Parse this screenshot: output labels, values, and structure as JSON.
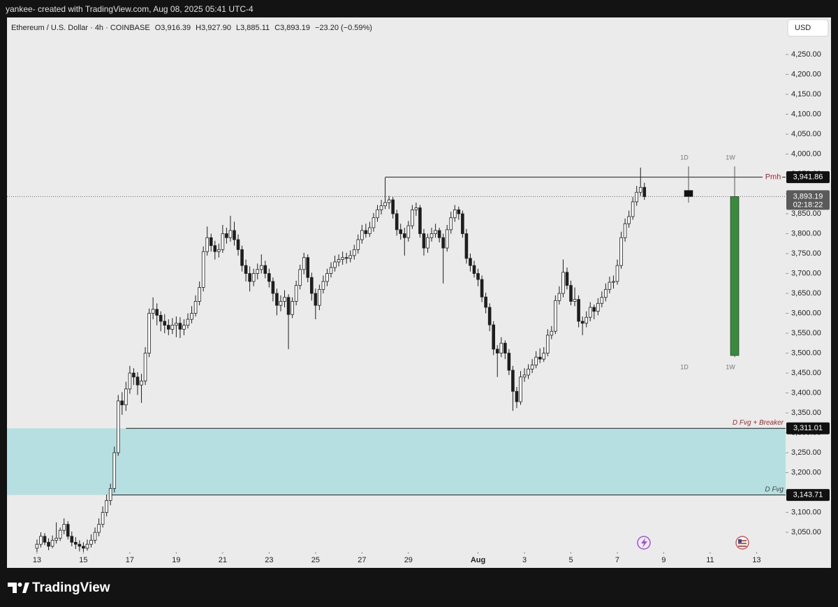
{
  "header": {
    "attribution": "yankee- created with TradingView.com, Aug 08, 2025 05:41 UTC-4",
    "symbol": "Ethereum / U.S. Dollar · 4h · COINBASE",
    "quote": [
      "O3,916.39",
      "H3,927.90",
      "L3,885.11",
      "C3,893.19",
      "−23.20 (−0.59%)"
    ],
    "currency": "USD",
    "brand": "TradingView"
  },
  "chart_data": {
    "type": "candlestick",
    "x": [
      0,
      4,
      8,
      12,
      16,
      20,
      24,
      28,
      32,
      36,
      40,
      44,
      48,
      52,
      56,
      60,
      64,
      68,
      72,
      76,
      80,
      84,
      88,
      92,
      96,
      100,
      104,
      108,
      112,
      116,
      120,
      124,
      128,
      132,
      136,
      140,
      144,
      148,
      152,
      156,
      160,
      164,
      168,
      172,
      176,
      180,
      184,
      188,
      192,
      196,
      200,
      204,
      208,
      212,
      216,
      220,
      224,
      228,
      232,
      236,
      240,
      244,
      248,
      252,
      256,
      260,
      264,
      268,
      272,
      276,
      280,
      284,
      288,
      292,
      296,
      300,
      304,
      308,
      312,
      316,
      320,
      324,
      328,
      332,
      336,
      340,
      344,
      348,
      352,
      356,
      360,
      364,
      368,
      372,
      376,
      380,
      384,
      388,
      392,
      396,
      400,
      404,
      408,
      412,
      416,
      420,
      424,
      428,
      432,
      436,
      440,
      444,
      448,
      452,
      456,
      460,
      464,
      468,
      472,
      476,
      480,
      484,
      488,
      492,
      496,
      500,
      504,
      508,
      512,
      516,
      520,
      524,
      528,
      532,
      536,
      540,
      544,
      548,
      552,
      556,
      560,
      564,
      568,
      572,
      576,
      580,
      584,
      588,
      592,
      596,
      600,
      604,
      608,
      612,
      616,
      620,
      624,
      628
    ],
    "ohlc": [
      [
        3010,
        3032,
        3000,
        3020
      ],
      [
        3020,
        3050,
        3012,
        3040
      ],
      [
        3040,
        3048,
        3018,
        3025
      ],
      [
        3025,
        3035,
        3005,
        3015
      ],
      [
        3015,
        3042,
        3010,
        3030
      ],
      [
        3030,
        3075,
        3022,
        3035
      ],
      [
        3035,
        3062,
        3028,
        3055
      ],
      [
        3055,
        3085,
        3045,
        3070
      ],
      [
        3070,
        3078,
        3032,
        3040
      ],
      [
        3040,
        3052,
        3015,
        3025
      ],
      [
        3025,
        3038,
        3008,
        3020
      ],
      [
        3020,
        3030,
        3002,
        3015
      ],
      [
        3015,
        3025,
        2995,
        3010
      ],
      [
        3010,
        3032,
        3004,
        3020
      ],
      [
        3020,
        3045,
        3012,
        3030
      ],
      [
        3030,
        3062,
        3022,
        3050
      ],
      [
        3050,
        3085,
        3040,
        3070
      ],
      [
        3070,
        3115,
        3062,
        3100
      ],
      [
        3100,
        3145,
        3090,
        3130
      ],
      [
        3130,
        3172,
        3118,
        3160
      ],
      [
        3160,
        3265,
        3150,
        3250
      ],
      [
        3250,
        3395,
        3242,
        3380
      ],
      [
        3380,
        3402,
        3345,
        3370
      ],
      [
        3370,
        3428,
        3355,
        3410
      ],
      [
        3410,
        3468,
        3398,
        3450
      ],
      [
        3450,
        3462,
        3420,
        3440
      ],
      [
        3440,
        3452,
        3395,
        3420
      ],
      [
        3420,
        3448,
        3375,
        3430
      ],
      [
        3430,
        3515,
        3420,
        3500
      ],
      [
        3500,
        3612,
        3490,
        3600
      ],
      [
        3600,
        3640,
        3585,
        3610
      ],
      [
        3610,
        3625,
        3570,
        3595
      ],
      [
        3595,
        3605,
        3555,
        3580
      ],
      [
        3580,
        3598,
        3550,
        3570
      ],
      [
        3570,
        3585,
        3545,
        3560
      ],
      [
        3560,
        3588,
        3548,
        3570
      ],
      [
        3570,
        3592,
        3540,
        3575
      ],
      [
        3575,
        3590,
        3538,
        3560
      ],
      [
        3560,
        3585,
        3545,
        3570
      ],
      [
        3570,
        3600,
        3562,
        3585
      ],
      [
        3585,
        3618,
        3575,
        3600
      ],
      [
        3600,
        3645,
        3592,
        3630
      ],
      [
        3630,
        3680,
        3620,
        3665
      ],
      [
        3665,
        3768,
        3655,
        3755
      ],
      [
        3755,
        3818,
        3745,
        3790
      ],
      [
        3790,
        3800,
        3755,
        3770
      ],
      [
        3770,
        3782,
        3735,
        3755
      ],
      [
        3755,
        3775,
        3740,
        3760
      ],
      [
        3760,
        3822,
        3752,
        3800
      ],
      [
        3800,
        3815,
        3775,
        3790
      ],
      [
        3790,
        3845,
        3780,
        3808
      ],
      [
        3808,
        3830,
        3770,
        3785
      ],
      [
        3785,
        3798,
        3745,
        3760
      ],
      [
        3760,
        3770,
        3705,
        3720
      ],
      [
        3720,
        3735,
        3680,
        3700
      ],
      [
        3700,
        3718,
        3655,
        3680
      ],
      [
        3680,
        3712,
        3668,
        3700
      ],
      [
        3700,
        3725,
        3685,
        3710
      ],
      [
        3710,
        3748,
        3700,
        3720
      ],
      [
        3720,
        3732,
        3688,
        3700
      ],
      [
        3700,
        3712,
        3665,
        3680
      ],
      [
        3680,
        3690,
        3630,
        3650
      ],
      [
        3650,
        3662,
        3595,
        3620
      ],
      [
        3620,
        3645,
        3605,
        3630
      ],
      [
        3630,
        3658,
        3615,
        3640
      ],
      [
        3640,
        3648,
        3510,
        3597
      ],
      [
        3597,
        3640,
        3588,
        3630
      ],
      [
        3630,
        3682,
        3620,
        3670
      ],
      [
        3670,
        3722,
        3660,
        3710
      ],
      [
        3710,
        3752,
        3698,
        3740
      ],
      [
        3740,
        3748,
        3678,
        3690
      ],
      [
        3690,
        3702,
        3632,
        3650
      ],
      [
        3650,
        3662,
        3585,
        3620
      ],
      [
        3620,
        3672,
        3608,
        3660
      ],
      [
        3660,
        3695,
        3650,
        3680
      ],
      [
        3680,
        3712,
        3668,
        3700
      ],
      [
        3700,
        3728,
        3690,
        3715
      ],
      [
        3715,
        3745,
        3705,
        3729
      ],
      [
        3729,
        3748,
        3718,
        3735
      ],
      [
        3735,
        3755,
        3722,
        3740
      ],
      [
        3740,
        3752,
        3725,
        3738
      ],
      [
        3738,
        3758,
        3728,
        3745
      ],
      [
        3745,
        3772,
        3735,
        3760
      ],
      [
        3760,
        3798,
        3750,
        3785
      ],
      [
        3785,
        3822,
        3775,
        3808
      ],
      [
        3808,
        3825,
        3790,
        3800
      ],
      [
        3800,
        3830,
        3792,
        3815
      ],
      [
        3815,
        3852,
        3805,
        3840
      ],
      [
        3840,
        3872,
        3830,
        3860
      ],
      [
        3860,
        3885,
        3848,
        3870
      ],
      [
        3870,
        3941,
        3862,
        3878
      ],
      [
        3878,
        3895,
        3862,
        3885
      ],
      [
        3885,
        3892,
        3838,
        3850
      ],
      [
        3850,
        3860,
        3795,
        3810
      ],
      [
        3810,
        3825,
        3785,
        3800
      ],
      [
        3800,
        3815,
        3745,
        3790
      ],
      [
        3790,
        3832,
        3780,
        3820
      ],
      [
        3820,
        3872,
        3812,
        3860
      ],
      [
        3860,
        3878,
        3845,
        3865
      ],
      [
        3865,
        3872,
        3790,
        3800
      ],
      [
        3800,
        3812,
        3745,
        3764
      ],
      [
        3764,
        3800,
        3752,
        3790
      ],
      [
        3790,
        3815,
        3780,
        3800
      ],
      [
        3800,
        3825,
        3790,
        3808
      ],
      [
        3808,
        3815,
        3778,
        3790
      ],
      [
        3790,
        3800,
        3675,
        3764
      ],
      [
        3764,
        3822,
        3755,
        3810
      ],
      [
        3810,
        3855,
        3800,
        3840
      ],
      [
        3840,
        3872,
        3830,
        3860
      ],
      [
        3860,
        3868,
        3835,
        3850
      ],
      [
        3850,
        3858,
        3790,
        3800
      ],
      [
        3800,
        3812,
        3725,
        3738
      ],
      [
        3738,
        3750,
        3705,
        3720
      ],
      [
        3720,
        3732,
        3690,
        3700
      ],
      [
        3700,
        3712,
        3668,
        3685
      ],
      [
        3685,
        3695,
        3628,
        3641
      ],
      [
        3641,
        3652,
        3600,
        3615
      ],
      [
        3615,
        3625,
        3555,
        3571
      ],
      [
        3571,
        3580,
        3495,
        3510
      ],
      [
        3510,
        3520,
        3440,
        3500
      ],
      [
        3500,
        3540,
        3490,
        3525
      ],
      [
        3525,
        3532,
        3485,
        3500
      ],
      [
        3500,
        3510,
        3445,
        3457
      ],
      [
        3457,
        3468,
        3355,
        3404
      ],
      [
        3404,
        3415,
        3362,
        3378
      ],
      [
        3378,
        3455,
        3370,
        3440
      ],
      [
        3440,
        3462,
        3428,
        3445
      ],
      [
        3445,
        3472,
        3435,
        3460
      ],
      [
        3460,
        3485,
        3450,
        3470
      ],
      [
        3470,
        3505,
        3462,
        3490
      ],
      [
        3490,
        3512,
        3475,
        3485
      ],
      [
        3485,
        3515,
        3478,
        3500
      ],
      [
        3500,
        3560,
        3492,
        3545
      ],
      [
        3545,
        3568,
        3535,
        3555
      ],
      [
        3555,
        3645,
        3548,
        3632
      ],
      [
        3632,
        3668,
        3622,
        3650
      ],
      [
        3650,
        3735,
        3640,
        3703
      ],
      [
        3703,
        3715,
        3660,
        3670
      ],
      [
        3670,
        3682,
        3620,
        3630
      ],
      [
        3630,
        3665,
        3618,
        3635
      ],
      [
        3635,
        3645,
        3565,
        3580
      ],
      [
        3580,
        3592,
        3545,
        3575
      ],
      [
        3575,
        3605,
        3565,
        3590
      ],
      [
        3590,
        3628,
        3580,
        3615
      ],
      [
        3615,
        3622,
        3585,
        3605
      ],
      [
        3605,
        3638,
        3595,
        3625
      ],
      [
        3625,
        3655,
        3615,
        3640
      ],
      [
        3640,
        3675,
        3630,
        3660
      ],
      [
        3660,
        3692,
        3650,
        3678
      ],
      [
        3678,
        3695,
        3662,
        3680
      ],
      [
        3680,
        3735,
        3672,
        3720
      ],
      [
        3720,
        3805,
        3712,
        3790
      ],
      [
        3790,
        3838,
        3780,
        3825
      ],
      [
        3825,
        3858,
        3815,
        3843
      ],
      [
        3843,
        3892,
        3835,
        3880
      ],
      [
        3880,
        3920,
        3870,
        3904
      ],
      [
        3904,
        3966,
        3895,
        3916.39
      ],
      [
        3916.39,
        3927.9,
        3885.11,
        3893.19
      ]
    ],
    "up_color": "#ffffff",
    "down_color": "#1e1e1e",
    "wick_color": "#1e1e1e",
    "xlim": [
      -31,
      774
    ],
    "xticks": [
      {
        "value": 0,
        "label": "13"
      },
      {
        "value": 48,
        "label": "15"
      },
      {
        "value": 96,
        "label": "17"
      },
      {
        "value": 144,
        "label": "19"
      },
      {
        "value": 192,
        "label": "21"
      },
      {
        "value": 240,
        "label": "23"
      },
      {
        "value": 288,
        "label": "25"
      },
      {
        "value": 336,
        "label": "27"
      },
      {
        "value": 384,
        "label": "29"
      },
      {
        "value": 456,
        "label": "Aug"
      },
      {
        "value": 504,
        "label": "3"
      },
      {
        "value": 552,
        "label": "5"
      },
      {
        "value": 600,
        "label": "7"
      },
      {
        "value": 648,
        "label": "9"
      },
      {
        "value": 696,
        "label": "11"
      },
      {
        "value": 744,
        "label": "13"
      }
    ],
    "ylim": [
      3001,
      4343
    ],
    "yticks": [
      {
        "value": 3050,
        "label": "3,050.00"
      },
      {
        "value": 3100,
        "label": "3,100.00"
      },
      {
        "value": 3150,
        "label": "3,150.00"
      },
      {
        "value": 3200,
        "label": "3,200.00"
      },
      {
        "value": 3250,
        "label": "3,250.00"
      },
      {
        "value": 3300,
        "label": "3,300.00"
      },
      {
        "value": 3350,
        "label": "3,350.00"
      },
      {
        "value": 3400,
        "label": "3,400.00"
      },
      {
        "value": 3450,
        "label": "3,450.00"
      },
      {
        "value": 3500,
        "label": "3,500.00"
      },
      {
        "value": 3550,
        "label": "3,550.00"
      },
      {
        "value": 3600,
        "label": "3,600.00"
      },
      {
        "value": 3650,
        "label": "3,650.00"
      },
      {
        "value": 3700,
        "label": "3,700.00"
      },
      {
        "value": 3750,
        "label": "3,750.00"
      },
      {
        "value": 3800,
        "label": "3,800.00"
      },
      {
        "value": 3850,
        "label": "3,850.00"
      },
      {
        "value": 3900,
        "label": "3,900.00"
      },
      {
        "value": 3950,
        "label": "3,950.00"
      },
      {
        "value": 4000,
        "label": "4,000.00"
      },
      {
        "value": 4050,
        "label": "4,050.00"
      },
      {
        "value": 4100,
        "label": "4,100.00"
      },
      {
        "value": 4150,
        "label": "4,150.00"
      },
      {
        "value": 4200,
        "label": "4,200.00"
      },
      {
        "value": 4250,
        "label": "4,250.00"
      }
    ],
    "grid": false,
    "levels": [
      {
        "name": "Pmh",
        "value": 3941.86,
        "label": "3,941.86",
        "start": 360,
        "color": "#9c2b2b"
      },
      {
        "name": "D Fvg + Breaker",
        "value": 3311.01,
        "label": "3,311.01",
        "start": 92,
        "color": "#9c2b2b"
      },
      {
        "name": "D Fvg",
        "value": 3143.71,
        "label": "3,143.71",
        "start": 76,
        "color": "#444444"
      }
    ],
    "zone_color": "#b5dfe0",
    "last_price": {
      "value": 3893.19,
      "label": "3,893.19",
      "countdown": "02:18:22"
    },
    "htf_candles": [
      {
        "name": "1D",
        "ohlc": [
          3908.6,
          3969,
          3878,
          3893.19
        ]
      },
      {
        "name": "1W",
        "ohlc": [
          3494,
          3969,
          3490,
          3893.19
        ]
      }
    ],
    "htf_up_color": "#3a8a3e",
    "htf_down_color": "#111111"
  }
}
